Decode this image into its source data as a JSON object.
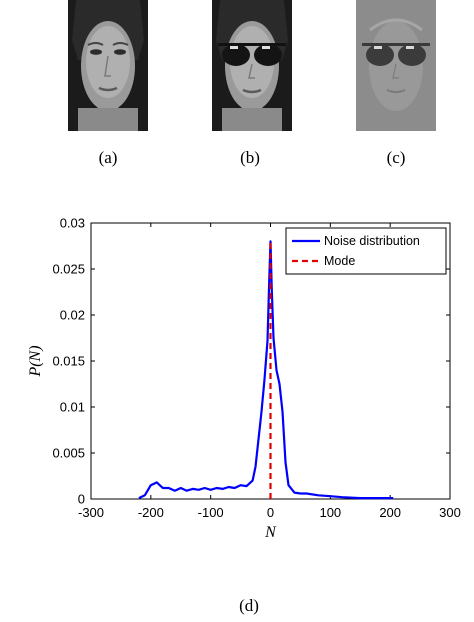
{
  "figure": {
    "captions": {
      "a": "(a)",
      "b": "(b)",
      "c": "(c)",
      "d": "(d)"
    }
  },
  "colors": {
    "noise": "#0000ff",
    "mode": "#e00000",
    "face_dark": "#1a1a1a"
  },
  "chart_data": {
    "type": "line",
    "xlabel": "N",
    "ylabel": "P(N)",
    "xlim": [
      -300,
      300
    ],
    "ylim": [
      0,
      0.03
    ],
    "xticks": [
      -300,
      -200,
      -100,
      0,
      100,
      200,
      300
    ],
    "xtick_labels": [
      "-300",
      "-200",
      "-100",
      "0",
      "100",
      "200",
      "300"
    ],
    "yticks": [
      0,
      0.005,
      0.01,
      0.015,
      0.02,
      0.025,
      0.03
    ],
    "ytick_labels": [
      "0",
      "0.005",
      "0.01",
      "0.015",
      "0.02",
      "0.025",
      "0.03"
    ],
    "legend_position": "top-right",
    "grid": false,
    "series": [
      {
        "name": "Noise distribution",
        "style": "solid",
        "x": [
          -220,
          -210,
          -200,
          -190,
          -180,
          -170,
          -160,
          -150,
          -140,
          -130,
          -120,
          -110,
          -100,
          -90,
          -80,
          -70,
          -60,
          -50,
          -40,
          -30,
          -25,
          -20,
          -15,
          -10,
          -5,
          -2,
          0,
          2,
          5,
          10,
          15,
          20,
          25,
          30,
          40,
          50,
          60,
          80,
          100,
          120,
          150,
          180,
          205
        ],
        "y": [
          0.0001,
          0.0004,
          0.0015,
          0.0018,
          0.0012,
          0.0012,
          0.0009,
          0.0012,
          0.0009,
          0.0011,
          0.001,
          0.0012,
          0.001,
          0.0012,
          0.0011,
          0.0013,
          0.0012,
          0.0015,
          0.0014,
          0.002,
          0.0035,
          0.0065,
          0.0095,
          0.013,
          0.0172,
          0.024,
          0.028,
          0.023,
          0.0175,
          0.014,
          0.0125,
          0.0095,
          0.004,
          0.0015,
          0.0007,
          0.0006,
          0.0006,
          0.0004,
          0.0003,
          0.0002,
          0.0001,
          0.0001,
          0.0001
        ]
      },
      {
        "name": "Mode",
        "style": "dashed",
        "x": [
          0,
          0
        ],
        "y": [
          0,
          0.028
        ]
      }
    ]
  }
}
